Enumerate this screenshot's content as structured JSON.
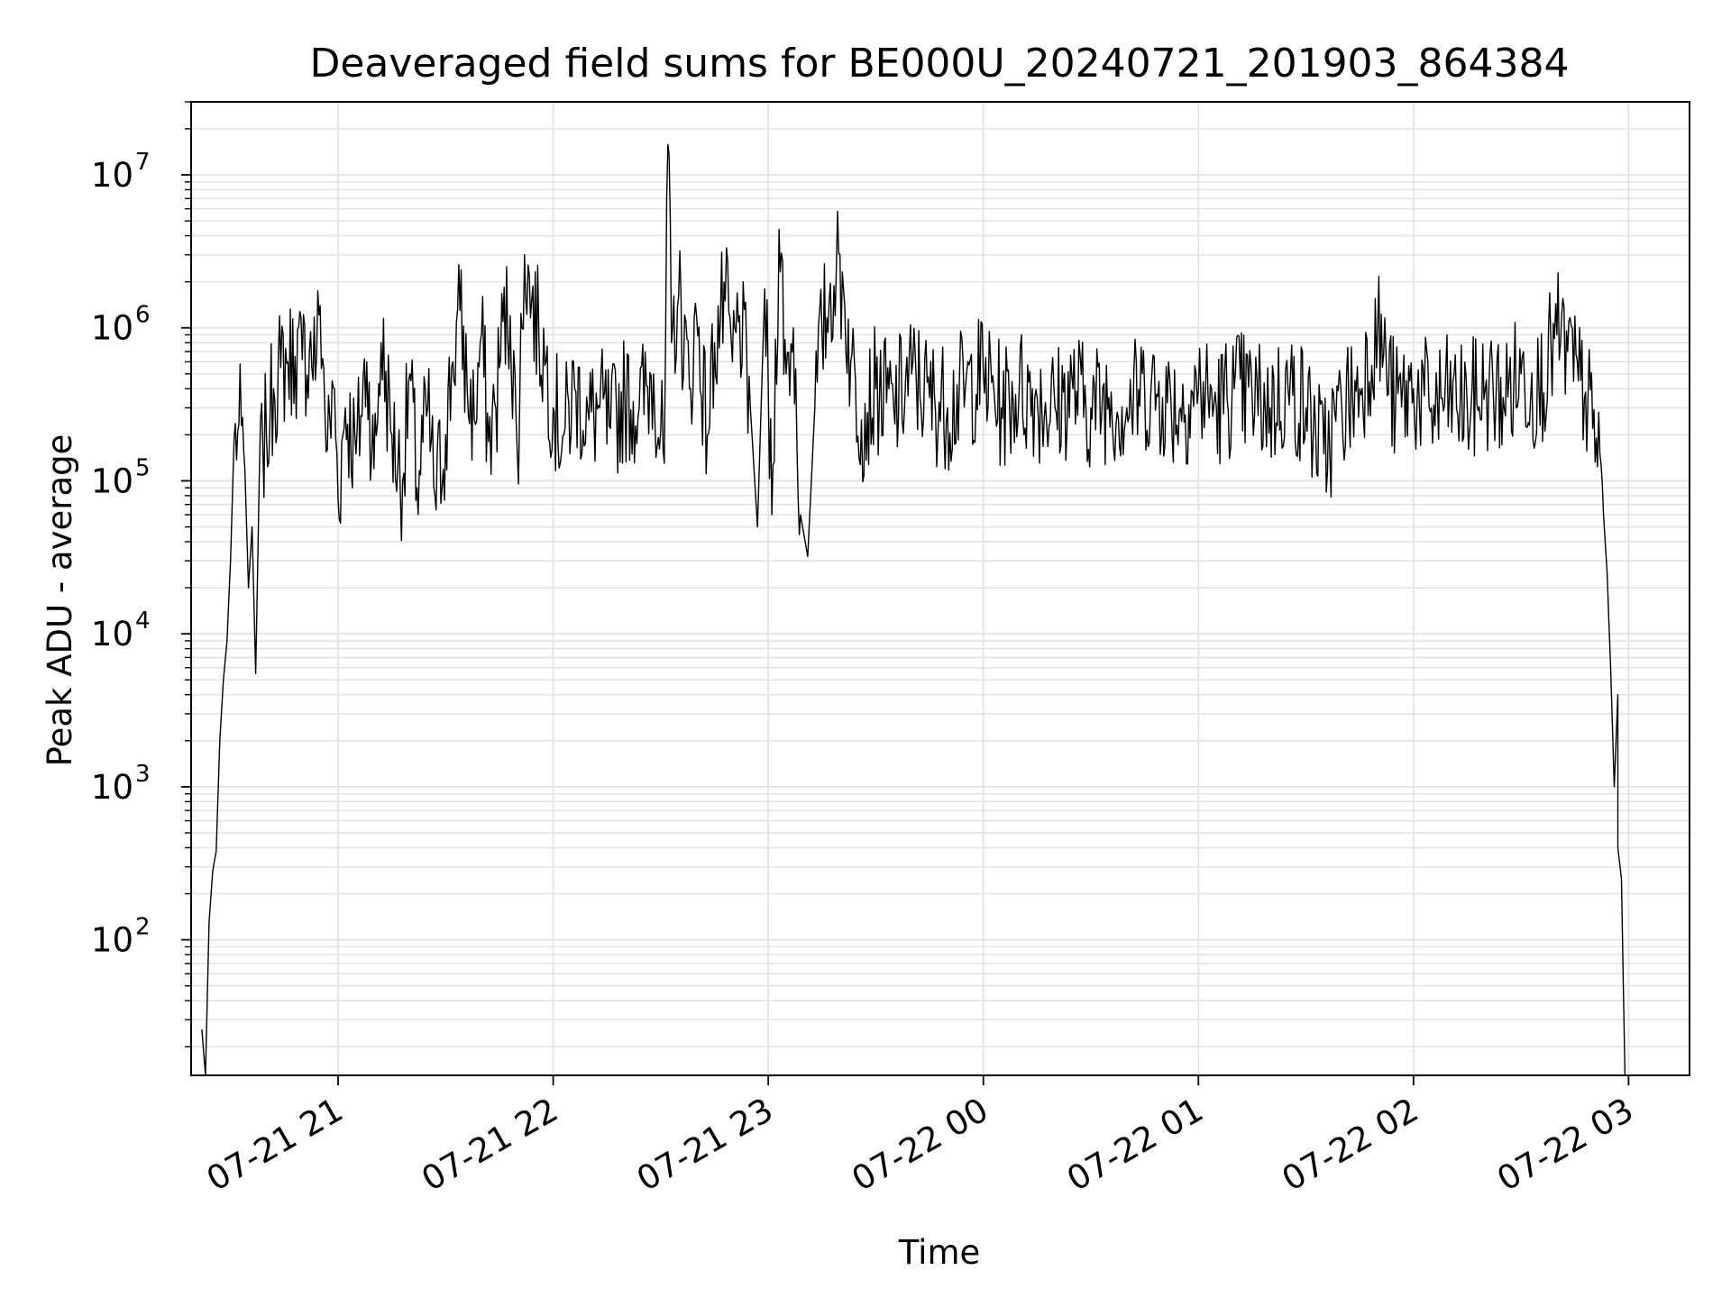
{
  "chart_data": {
    "type": "line",
    "title": "Deaveraged field sums for BE000U_20240721_201903_864384",
    "xlabel": "Time",
    "ylabel": "Peak ADU - average",
    "y_scale": "log",
    "grid": true,
    "legend": "none",
    "series_color": "#000000",
    "grid_color": "#e3e3e3",
    "x_ticks": [
      "07-21 21",
      "07-21 22",
      "07-21 23",
      "07-22 00",
      "07-22 01",
      "07-22 02",
      "07-22 03"
    ],
    "y_ticks": [
      {
        "base": "10",
        "exp": "2"
      },
      {
        "base": "10",
        "exp": "3"
      },
      {
        "base": "10",
        "exp": "4"
      },
      {
        "base": "10",
        "exp": "5"
      },
      {
        "base": "10",
        "exp": "6"
      },
      {
        "base": "10",
        "exp": "7"
      }
    ],
    "xlim": [
      "2024-07-21 20:19",
      "2024-07-22 03:17"
    ],
    "ylim": [
      13,
      30000000
    ],
    "series": [
      {
        "values": [
          [
            "2024-07-21 20:22",
            26
          ],
          [
            "2024-07-21 20:23",
            13
          ],
          [
            "2024-07-21 20:24",
            130
          ],
          [
            "2024-07-21 20:25",
            280
          ],
          [
            "2024-07-21 20:26",
            380
          ],
          [
            "2024-07-21 20:27",
            2000
          ],
          [
            "2024-07-21 20:28",
            5000
          ],
          [
            "2024-07-21 20:29",
            9000
          ],
          [
            "2024-07-21 20:30",
            30000
          ],
          [
            "2024-07-21 20:31",
            190000
          ],
          [
            "2024-07-21 20:32",
            210000
          ],
          [
            "2024-07-21 20:33",
            230000
          ],
          [
            "2024-07-21 20:34",
            120000
          ],
          [
            "2024-07-21 20:35",
            20000
          ],
          [
            "2024-07-21 20:36",
            50000
          ],
          [
            "2024-07-21 20:37",
            5500
          ],
          [
            "2024-07-21 20:38",
            100000
          ],
          [
            "2024-07-21 20:39",
            170000
          ],
          [
            "2024-07-21 20:40",
            200000
          ],
          [
            "2024-07-21 20:41",
            260000
          ],
          [
            "2024-07-21 20:42",
            400000
          ],
          [
            "2024-07-21 20:44",
            550000
          ],
          [
            "2024-07-21 20:46",
            600000
          ],
          [
            "2024-07-21 20:48",
            650000
          ],
          [
            "2024-07-21 20:50",
            620000
          ],
          [
            "2024-07-21 20:52",
            700000
          ],
          [
            "2024-07-21 20:54",
            650000
          ],
          [
            "2024-07-21 20:55",
            1400000
          ],
          [
            "2024-07-21 20:57",
            160000
          ],
          [
            "2024-07-21 20:59",
            400000
          ],
          [
            "2024-07-21 21:00",
            75000
          ],
          [
            "2024-07-21 21:02",
            300000
          ],
          [
            "2024-07-21 21:05",
            150000
          ],
          [
            "2024-07-21 21:08",
            600000
          ],
          [
            "2024-07-21 21:10",
            120000
          ],
          [
            "2024-07-21 21:12",
            800000
          ],
          [
            "2024-07-21 21:15",
            200000
          ],
          [
            "2024-07-21 21:18",
            100000
          ],
          [
            "2024-07-21 21:20",
            500000
          ],
          [
            "2024-07-21 21:22",
            90000
          ],
          [
            "2024-07-21 21:25",
            300000
          ],
          [
            "2024-07-21 21:27",
            80000
          ],
          [
            "2024-07-21 21:30",
            200000
          ],
          [
            "2024-07-21 21:32",
            600000
          ],
          [
            "2024-07-21 21:34",
            1300000
          ],
          [
            "2024-07-21 21:36",
            400000
          ],
          [
            "2024-07-21 21:38",
            250000
          ],
          [
            "2024-07-21 21:40",
            900000
          ],
          [
            "2024-07-21 21:42",
            180000
          ],
          [
            "2024-07-21 21:44",
            300000
          ],
          [
            "2024-07-21 21:46",
            1100000
          ],
          [
            "2024-07-21 21:48",
            1200000
          ],
          [
            "2024-07-21 21:50",
            150000
          ],
          [
            "2024-07-21 21:52",
            3000000
          ],
          [
            "2024-07-21 21:54",
            1500000
          ],
          [
            "2024-07-21 21:56",
            900000
          ],
          [
            "2024-07-21 21:58",
            600000
          ],
          [
            "2024-07-21 22:00",
            300000
          ],
          [
            "2024-07-21 22:03",
            200000
          ],
          [
            "2024-07-21 22:06",
            400000
          ],
          [
            "2024-07-21 22:10",
            250000
          ],
          [
            "2024-07-21 22:13",
            300000
          ],
          [
            "2024-07-21 22:16",
            220000
          ],
          [
            "2024-07-21 22:20",
            350000
          ],
          [
            "2024-07-21 22:24",
            300000
          ],
          [
            "2024-07-21 22:28",
            500000
          ],
          [
            "2024-07-21 22:31",
            130000
          ],
          [
            "2024-07-21 22:32",
            15800000
          ],
          [
            "2024-07-21 22:33",
            800000
          ],
          [
            "2024-07-21 22:35",
            1600000
          ],
          [
            "2024-07-21 22:38",
            400000
          ],
          [
            "2024-07-21 22:40",
            1200000
          ],
          [
            "2024-07-21 22:43",
            200000
          ],
          [
            "2024-07-21 22:45",
            800000
          ],
          [
            "2024-07-21 22:48",
            1500000
          ],
          [
            "2024-07-21 22:50",
            600000
          ],
          [
            "2024-07-21 22:52",
            1200000
          ],
          [
            "2024-07-21 22:55",
            300000
          ],
          [
            "2024-07-21 22:57",
            50000
          ],
          [
            "2024-07-21 22:59",
            1800000
          ],
          [
            "2024-07-21 23:01",
            60000
          ],
          [
            "2024-07-21 23:03",
            4400000
          ],
          [
            "2024-07-21 23:05",
            500000
          ],
          [
            "2024-07-21 23:07",
            1000000
          ],
          [
            "2024-07-21 23:09",
            60000
          ],
          [
            "2024-07-21 23:11",
            32000
          ],
          [
            "2024-07-21 23:13",
            300000
          ],
          [
            "2024-07-21 23:15",
            900000
          ],
          [
            "2024-07-21 23:17",
            1500000
          ],
          [
            "2024-07-21 23:19",
            2500000
          ],
          [
            "2024-07-21 23:21",
            1800000
          ],
          [
            "2024-07-21 23:23",
            600000
          ],
          [
            "2024-07-21 23:26",
            250000
          ],
          [
            "2024-07-21 23:30",
            400000
          ],
          [
            "2024-07-21 23:35",
            300000
          ],
          [
            "2024-07-21 23:40",
            500000
          ],
          [
            "2024-07-21 23:45",
            350000
          ],
          [
            "2024-07-21 23:50",
            300000
          ],
          [
            "2024-07-21 23:55",
            400000
          ],
          [
            "2024-07-22 00:00",
            500000
          ],
          [
            "2024-07-22 00:05",
            300000
          ],
          [
            "2024-07-22 00:10",
            400000
          ],
          [
            "2024-07-22 00:15",
            350000
          ],
          [
            "2024-07-22 00:20",
            300000
          ],
          [
            "2024-07-22 00:25",
            400000
          ],
          [
            "2024-07-22 00:30",
            300000
          ],
          [
            "2024-07-22 00:35",
            350000
          ],
          [
            "2024-07-22 00:40",
            300000
          ],
          [
            "2024-07-22 00:45",
            400000
          ],
          [
            "2024-07-22 00:50",
            350000
          ],
          [
            "2024-07-22 00:55",
            300000
          ],
          [
            "2024-07-22 01:00",
            400000
          ],
          [
            "2024-07-22 01:05",
            300000
          ],
          [
            "2024-07-22 01:10",
            400000
          ],
          [
            "2024-07-22 01:15",
            350000
          ],
          [
            "2024-07-22 01:20",
            300000
          ],
          [
            "2024-07-22 01:25",
            400000
          ],
          [
            "2024-07-22 01:30",
            300000
          ],
          [
            "2024-07-22 01:35",
            150000
          ],
          [
            "2024-07-22 01:40",
            300000
          ],
          [
            "2024-07-22 01:45",
            400000
          ],
          [
            "2024-07-22 01:50",
            1000000
          ],
          [
            "2024-07-22 01:55",
            300000
          ],
          [
            "2024-07-22 02:00",
            400000
          ],
          [
            "2024-07-22 02:05",
            300000
          ],
          [
            "2024-07-22 02:10",
            350000
          ],
          [
            "2024-07-22 02:15",
            300000
          ],
          [
            "2024-07-22 02:20",
            400000
          ],
          [
            "2024-07-22 02:25",
            350000
          ],
          [
            "2024-07-22 02:30",
            500000
          ],
          [
            "2024-07-22 02:35",
            400000
          ],
          [
            "2024-07-22 02:40",
            900000
          ],
          [
            "2024-07-22 02:43",
            700000
          ],
          [
            "2024-07-22 02:46",
            450000
          ],
          [
            "2024-07-22 02:48",
            380000
          ],
          [
            "2024-07-22 02:50",
            220000
          ],
          [
            "2024-07-22 02:52",
            150000
          ],
          [
            "2024-07-22 02:53",
            60000
          ],
          [
            "2024-07-22 02:54",
            25000
          ],
          [
            "2024-07-22 02:55",
            6000
          ],
          [
            "2024-07-22 02:56",
            1000
          ],
          [
            "2024-07-22 02:57",
            4000
          ],
          [
            "2024-07-22 02:57",
            400
          ],
          [
            "2024-07-22 02:58",
            250
          ],
          [
            "2024-07-22 02:59",
            13
          ]
        ]
      }
    ]
  }
}
